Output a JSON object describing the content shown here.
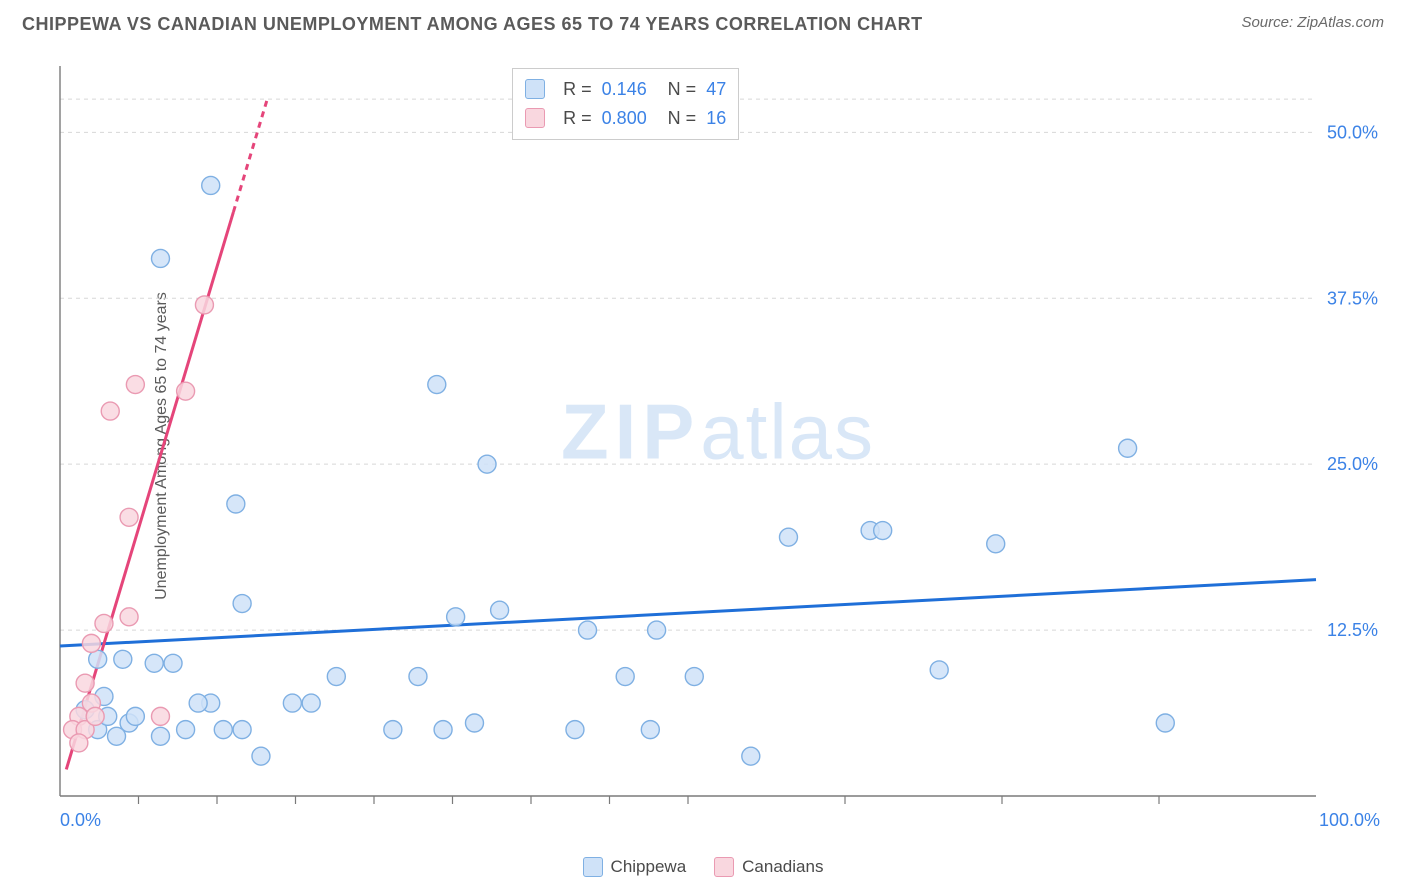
{
  "title": "CHIPPEWA VS CANADIAN UNEMPLOYMENT AMONG AGES 65 TO 74 YEARS CORRELATION CHART",
  "source": "Source: ZipAtlas.com",
  "ylabel": "Unemployment Among Ages 65 to 74 years",
  "watermark_a": "ZIP",
  "watermark_b": "atlas",
  "chart": {
    "type": "scatter",
    "xlim": [
      0,
      100
    ],
    "ylim": [
      0,
      55
    ],
    "grid_color": "#d7d7d7",
    "grid_dash": "4 4",
    "axis_color": "#7a7a7a",
    "y_gridlines": [
      12.5,
      25.0,
      37.5,
      50.0,
      52.5
    ],
    "y_tick_labels": [
      "12.5%",
      "25.0%",
      "37.5%",
      "50.0%"
    ],
    "y_tick_values": [
      12.5,
      25.0,
      37.5,
      50.0
    ],
    "x_ticks": [
      6.25,
      12.5,
      18.75,
      25.0,
      31.25,
      37.5,
      43.75,
      50.0,
      62.5,
      75.0,
      87.5
    ],
    "x_start_label": "0.0%",
    "x_end_label": "100.0%",
    "y_tick_color": "#3b82e6",
    "x_corner_color": "#3b82e6",
    "marker_radius": 9,
    "marker_stroke_width": 1.4,
    "series": [
      {
        "name": "Chippewa",
        "fill": "#cfe2f8",
        "stroke": "#7fb0e3",
        "line_color": "#1f6fd8",
        "line_width": 3,
        "r_value": "0.146",
        "n_value": "47",
        "trend": {
          "x1": 0,
          "y1": 11.3,
          "x2": 100,
          "y2": 16.3
        },
        "points": [
          {
            "x": 12.0,
            "y": 46.0
          },
          {
            "x": 8.0,
            "y": 40.5
          },
          {
            "x": 30.0,
            "y": 31.0
          },
          {
            "x": 85.0,
            "y": 26.2
          },
          {
            "x": 34.0,
            "y": 25.0
          },
          {
            "x": 14.0,
            "y": 22.0
          },
          {
            "x": 64.5,
            "y": 20.0
          },
          {
            "x": 65.5,
            "y": 20.0
          },
          {
            "x": 58.0,
            "y": 19.5
          },
          {
            "x": 74.5,
            "y": 19.0
          },
          {
            "x": 42.0,
            "y": 12.5
          },
          {
            "x": 14.5,
            "y": 14.5
          },
          {
            "x": 7.5,
            "y": 10.0
          },
          {
            "x": 9.0,
            "y": 10.0
          },
          {
            "x": 31.5,
            "y": 13.5
          },
          {
            "x": 35.0,
            "y": 14.0
          },
          {
            "x": 50.5,
            "y": 9.0
          },
          {
            "x": 45.0,
            "y": 9.0
          },
          {
            "x": 70.0,
            "y": 9.5
          },
          {
            "x": 88.0,
            "y": 5.5
          },
          {
            "x": 47.0,
            "y": 5.0
          },
          {
            "x": 47.5,
            "y": 12.5
          },
          {
            "x": 41.0,
            "y": 5.0
          },
          {
            "x": 30.5,
            "y": 5.0
          },
          {
            "x": 28.5,
            "y": 9.0
          },
          {
            "x": 18.5,
            "y": 7.0
          },
          {
            "x": 16.0,
            "y": 3.0
          },
          {
            "x": 14.5,
            "y": 5.0
          },
          {
            "x": 13.0,
            "y": 5.0
          },
          {
            "x": 12.0,
            "y": 7.0
          },
          {
            "x": 11.0,
            "y": 7.0
          },
          {
            "x": 10.0,
            "y": 5.0
          },
          {
            "x": 8.0,
            "y": 4.5
          },
          {
            "x": 5.5,
            "y": 5.5
          },
          {
            "x": 3.5,
            "y": 7.5
          },
          {
            "x": 3.0,
            "y": 10.3
          },
          {
            "x": 2.0,
            "y": 6.5
          },
          {
            "x": 55.0,
            "y": 3.0
          },
          {
            "x": 33.0,
            "y": 5.5
          },
          {
            "x": 20.0,
            "y": 7.0
          },
          {
            "x": 22.0,
            "y": 9.0
          },
          {
            "x": 4.5,
            "y": 4.5
          },
          {
            "x": 6.0,
            "y": 6.0
          },
          {
            "x": 5.0,
            "y": 10.3
          },
          {
            "x": 26.5,
            "y": 5.0
          },
          {
            "x": 3.0,
            "y": 5.0
          },
          {
            "x": 3.8,
            "y": 6.0
          }
        ]
      },
      {
        "name": "Canadians",
        "fill": "#f9d7df",
        "stroke": "#ea9ab2",
        "line_color": "#e5457a",
        "line_width": 3,
        "r_value": "0.800",
        "n_value": "16",
        "trend": {
          "x1": 0.5,
          "y1": 2.0,
          "x2": 16.5,
          "y2": 52.5
        },
        "trend_dash_after_y": 44.0,
        "points": [
          {
            "x": 11.5,
            "y": 37.0
          },
          {
            "x": 10.0,
            "y": 30.5
          },
          {
            "x": 6.0,
            "y": 31.0
          },
          {
            "x": 4.0,
            "y": 29.0
          },
          {
            "x": 5.5,
            "y": 21.0
          },
          {
            "x": 3.5,
            "y": 13.0
          },
          {
            "x": 5.5,
            "y": 13.5
          },
          {
            "x": 2.5,
            "y": 11.5
          },
          {
            "x": 2.0,
            "y": 8.5
          },
          {
            "x": 2.5,
            "y": 7.0
          },
          {
            "x": 1.5,
            "y": 6.0
          },
          {
            "x": 1.0,
            "y": 5.0
          },
          {
            "x": 8.0,
            "y": 6.0
          },
          {
            "x": 2.0,
            "y": 5.0
          },
          {
            "x": 1.5,
            "y": 4.0
          },
          {
            "x": 2.8,
            "y": 6.0
          }
        ]
      }
    ],
    "legend_bottom": [
      {
        "label": "Chippewa",
        "fill": "#cfe2f8",
        "stroke": "#7fb0e3"
      },
      {
        "label": "Canadians",
        "fill": "#f9d7df",
        "stroke": "#ea9ab2"
      }
    ]
  }
}
